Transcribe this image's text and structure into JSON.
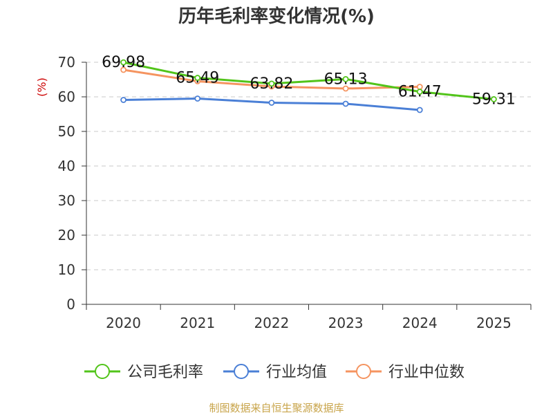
{
  "chart_data": {
    "type": "line",
    "title": "历年毛利率变化情况(%)",
    "ylabel": "(%)",
    "xlabel": "",
    "categories": [
      "2020",
      "2021",
      "2022",
      "2023",
      "2024",
      "2025"
    ],
    "ylim": [
      0,
      70
    ],
    "yticks": [
      0,
      10,
      20,
      30,
      40,
      50,
      60,
      70
    ],
    "grid": true,
    "legend_position": "bottom",
    "series": [
      {
        "name": "公司毛利率",
        "color": "#52c41a",
        "values": [
          69.98,
          65.49,
          63.82,
          65.13,
          61.47,
          59.31
        ],
        "labels": [
          "69.98",
          "65.49",
          "63.82",
          "65.13",
          "61.47",
          "59.31"
        ]
      },
      {
        "name": "行业均值",
        "color": "#4a7fd6",
        "values": [
          59.1,
          59.5,
          58.3,
          58.0,
          56.2,
          null
        ]
      },
      {
        "name": "行业中位数",
        "color": "#f59460",
        "values": [
          67.8,
          64.5,
          63.0,
          62.4,
          62.9,
          null
        ]
      }
    ]
  },
  "footer": {
    "source": "制图数据来自恒生聚源数据库"
  }
}
